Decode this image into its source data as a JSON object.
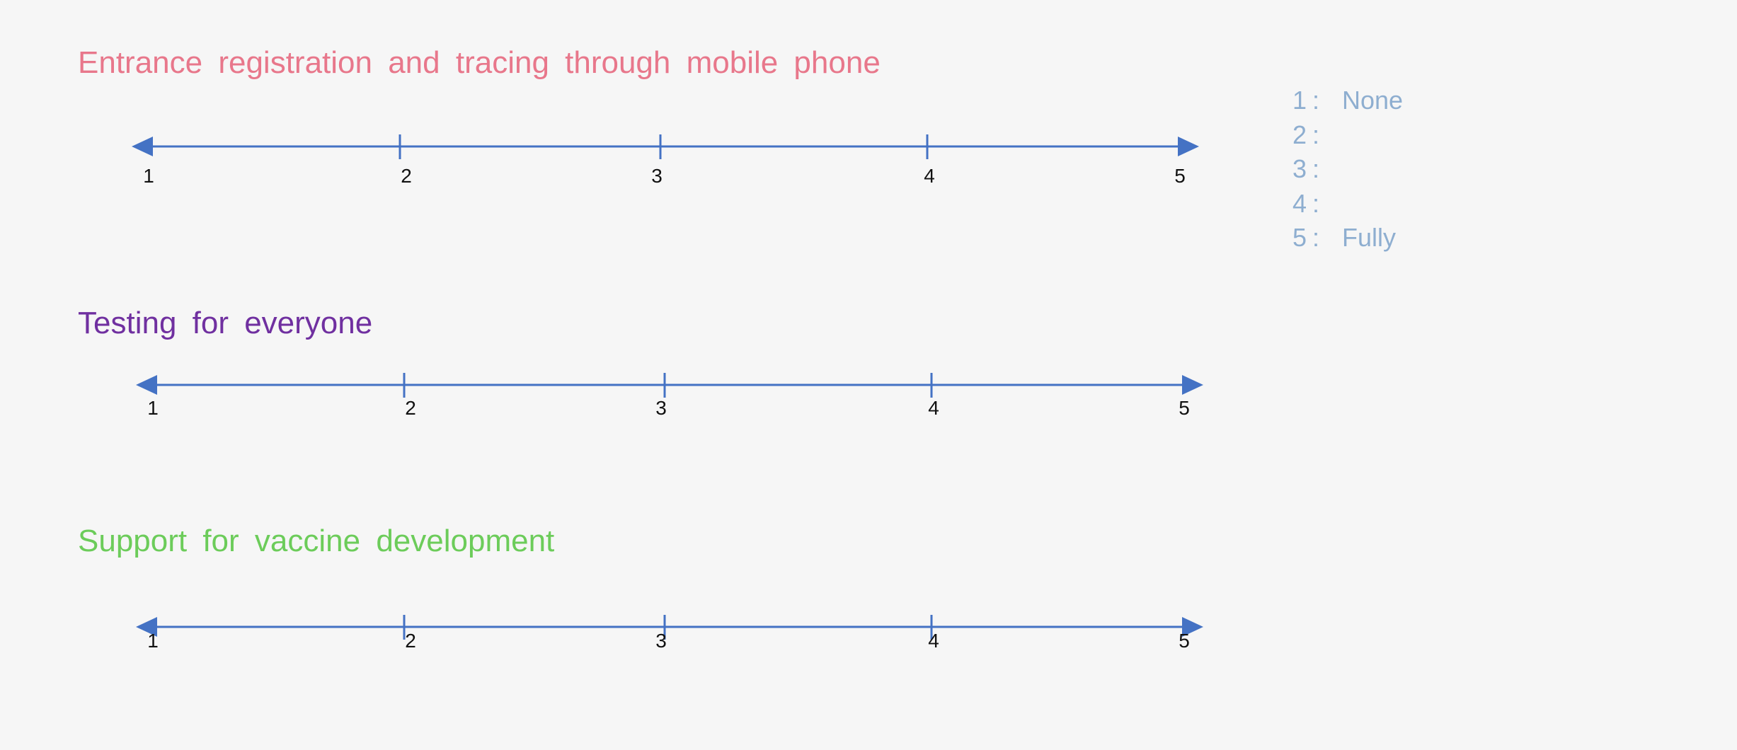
{
  "colors": {
    "background": "#f6f6f6",
    "axis": "#4472c4",
    "tick_label": "#111111",
    "legend": "#8eaed0"
  },
  "scales": [
    {
      "title": "Entrance registration and tracing through mobile phone",
      "color": "#e8778b",
      "ticks": [
        "1",
        "2",
        "3",
        "4",
        "5"
      ]
    },
    {
      "title": "Testing for everyone",
      "color": "#7030a0",
      "ticks": [
        "1",
        "2",
        "3",
        "4",
        "5"
      ]
    },
    {
      "title": "Support for vaccine development",
      "color": "#6ccc5a",
      "ticks": [
        "1",
        "2",
        "3",
        "4",
        "5"
      ]
    }
  ],
  "legend": {
    "separator": ":",
    "items": [
      {
        "key": "1",
        "label": "None"
      },
      {
        "key": "2",
        "label": ""
      },
      {
        "key": "3",
        "label": ""
      },
      {
        "key": "4",
        "label": ""
      },
      {
        "key": "5",
        "label": "Fully"
      }
    ]
  }
}
